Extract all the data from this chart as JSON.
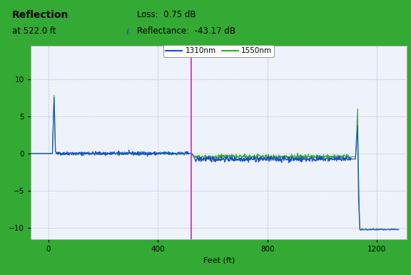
{
  "title_main": "Reflection",
  "title_sub": "at 522.0 ft",
  "loss_label": "Loss:  0.75 dB",
  "reflectance_label": "Reflectance:  -43.17 dB",
  "xlabel": "Feet (ft)",
  "xlim": [
    -65,
    1310
  ],
  "ylim": [
    -11.5,
    14.5
  ],
  "yticks": [
    -10,
    -5,
    0,
    5,
    10
  ],
  "xticks": [
    0,
    400,
    800,
    1200
  ],
  "legend_1310": "1310nm",
  "legend_1550": "1550nm",
  "color_1310": "#1a4fcc",
  "color_1550": "#3aaa35",
  "color_cursor": "#ff00ff",
  "color_border": "#33aa33",
  "color_plot_bg": "#eef2fb",
  "color_header_bg": "#f0f0f0",
  "cursor_x": 522,
  "spike1_x": 20,
  "spike1_height_1310": 7.5,
  "spike1_height_1550": 7.8,
  "flat1_level_1310": 0.0,
  "flat1_level_1550": 0.0,
  "flat2_level_1310": -0.75,
  "flat2_level_1550": -0.45,
  "spike2_x": 1130,
  "spike2_height_1310": 3.8,
  "spike2_height_1550": 6.0,
  "drop_level": -10.2,
  "noise_amplitude_1": 0.12,
  "noise_amplitude_2": 0.18,
  "end_x": 1280
}
